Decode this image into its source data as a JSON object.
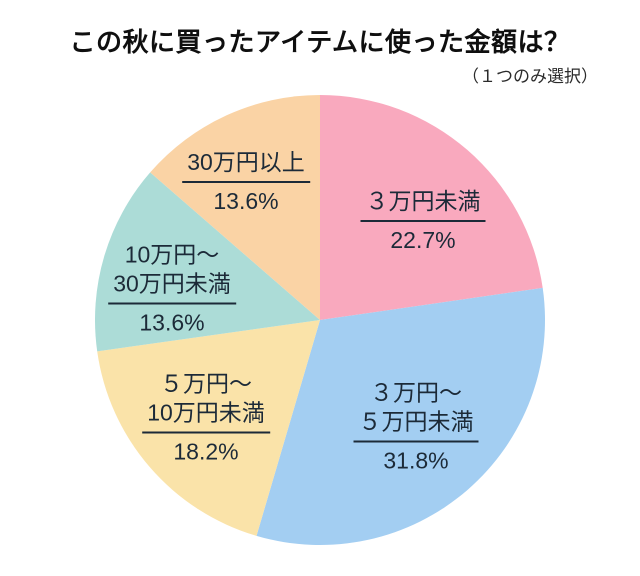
{
  "chart_data": {
    "type": "pie",
    "title": "この秋に買ったアイテムに使った金額は？",
    "subtitle": "（１つのみ選択）",
    "start_angle_deg": 0,
    "direction": "clockwise",
    "background": "#FFFFFF",
    "text_color": "#1C2A38",
    "title_color": "#0F0F0F",
    "segments": [
      {
        "name": "３万円未満",
        "label_lines": [
          "３万円未満"
        ],
        "value": 22.7,
        "percent_label": "22.7%",
        "color": "#F9A9BE",
        "label_offset": [
          103,
          -99
        ]
      },
      {
        "name": "３万円〜５万円未満",
        "label_lines": [
          "３万円〜",
          "５万円未満"
        ],
        "value": 31.8,
        "percent_label": "31.8%",
        "color": "#A3CEF2",
        "label_offset": [
          96,
          107
        ]
      },
      {
        "name": "５万円〜10万円未満",
        "label_lines": [
          "５万円〜",
          "10万円未満"
        ],
        "value": 18.2,
        "percent_label": "18.2%",
        "color": "#FAE3A9",
        "label_offset": [
          -114,
          98
        ]
      },
      {
        "name": "10万円〜30万円未満",
        "label_lines": [
          "10万円〜",
          "30万円未満"
        ],
        "value": 13.6,
        "percent_label": "13.6%",
        "color": "#ACDCD7",
        "label_offset": [
          -148,
          -31
        ]
      },
      {
        "name": "30万円以上",
        "label_lines": [
          "30万円以上"
        ],
        "value": 13.6,
        "percent_label": "13.6%",
        "color": "#FAD3A5",
        "label_offset": [
          -74,
          -138
        ]
      }
    ]
  }
}
